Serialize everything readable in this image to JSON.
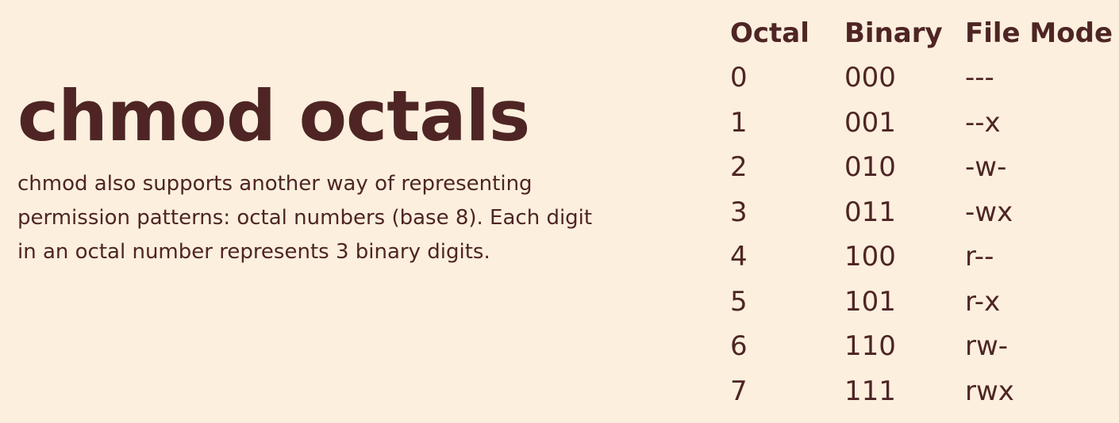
{
  "title": "chmod octals",
  "description": "chmod also supports another way of representing\npermission patterns: octal numbers (base 8).  Each digit\nin an octal number represents 3 binary digits.",
  "table": {
    "headers": [
      "Octal",
      "Binary",
      "File Mode"
    ],
    "rows": [
      [
        "0",
        "000",
        "---"
      ],
      [
        "1",
        "001",
        "--x"
      ],
      [
        "2",
        "010",
        "-w-"
      ],
      [
        "3",
        "011",
        "-wx"
      ],
      [
        "4",
        "100",
        "r--"
      ],
      [
        "5",
        "101",
        "r-x"
      ],
      [
        "6",
        "110",
        "rw-"
      ],
      [
        "7",
        "111",
        "rwx"
      ]
    ]
  },
  "colors": {
    "background": "#fcefde",
    "text": "#4e2524"
  }
}
